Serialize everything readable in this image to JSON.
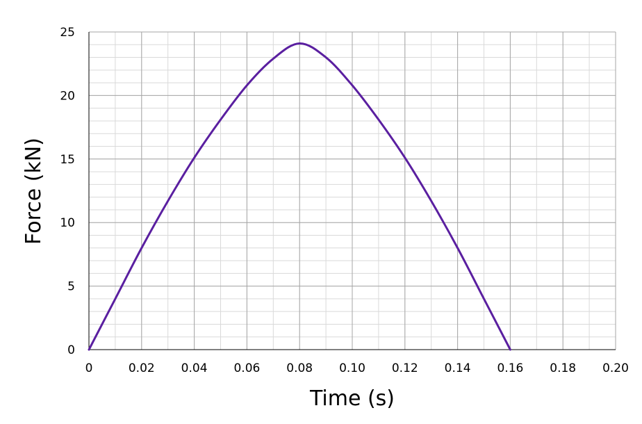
{
  "chart_data": {
    "type": "line",
    "title": "",
    "xlabel": "Time (s)",
    "ylabel": "Force (kN)",
    "xlim": [
      0,
      0.2
    ],
    "ylim": [
      0,
      25
    ],
    "x_ticks": [
      "0",
      "0.02",
      "0.04",
      "0.06",
      "0.08",
      "0.10",
      "0.12",
      "0.14",
      "0.16",
      "0.18",
      "0.20"
    ],
    "y_ticks": [
      "0",
      "5",
      "10",
      "15",
      "20",
      "25"
    ],
    "x_minor_step": 0.01,
    "y_minor_step": 1,
    "grid": true,
    "legend": "none",
    "series": [
      {
        "color": "#5a1fa0",
        "x": [
          0,
          0.01,
          0.02,
          0.03,
          0.04,
          0.05,
          0.06,
          0.07,
          0.08,
          0.09,
          0.1,
          0.11,
          0.12,
          0.13,
          0.14,
          0.15,
          0.16
        ],
        "y": [
          0,
          4.0,
          8.0,
          11.7,
          15.1,
          18.1,
          20.8,
          22.9,
          24.1,
          23.0,
          20.8,
          18.1,
          15.1,
          11.7,
          8.0,
          4.0,
          0
        ]
      }
    ]
  },
  "colors": {
    "major_grid": "#a6a6a6",
    "minor_grid": "#d9d9d9",
    "axis": "#000000"
  }
}
